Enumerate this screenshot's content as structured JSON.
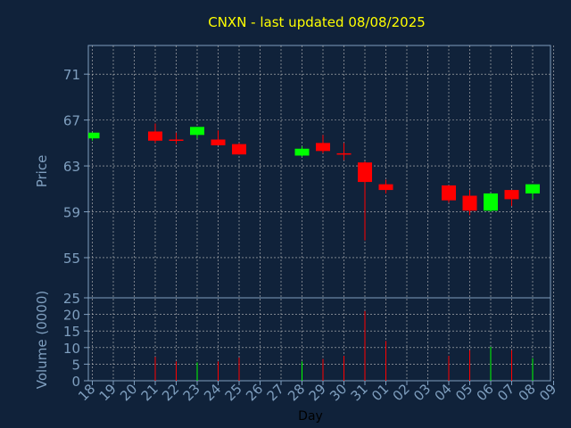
{
  "chart_data": {
    "type": "candlestick",
    "title": "CNXN - last updated 08/08/2025",
    "xlabel": "Day",
    "ylabel": "Price",
    "volume_ylabel": "Volume (0000)",
    "grid": true,
    "price_ylim": [
      51.5,
      73.5
    ],
    "price_ticks": [
      55,
      59,
      63,
      67,
      71
    ],
    "volume_ylim": [
      0,
      25
    ],
    "volume_ticks": [
      0,
      5,
      10,
      15,
      20,
      25
    ],
    "x_tick_labels": [
      "18",
      "19",
      "20",
      "21",
      "22",
      "23",
      "24",
      "25",
      "26",
      "27",
      "28",
      "29",
      "30",
      "31",
      "01",
      "02",
      "03",
      "04",
      "05",
      "06",
      "07",
      "08",
      "09"
    ],
    "candles": [
      {
        "day": "18",
        "open": 65.4,
        "high": 65.9,
        "low": 65.2,
        "close": 65.9,
        "volume": 0
      },
      {
        "day": "21",
        "open": 66.0,
        "high": 66.7,
        "low": 65.0,
        "close": 65.2,
        "volume": 7.2
      },
      {
        "day": "22",
        "open": 65.3,
        "high": 65.9,
        "low": 64.9,
        "close": 65.2,
        "volume": 5.8
      },
      {
        "day": "23",
        "open": 65.7,
        "high": 66.4,
        "low": 65.4,
        "close": 66.4,
        "volume": 5.5
      },
      {
        "day": "24",
        "open": 65.3,
        "high": 66.1,
        "low": 64.8,
        "close": 64.8,
        "volume": 5.8
      },
      {
        "day": "25",
        "open": 64.9,
        "high": 65.0,
        "low": 64.0,
        "close": 64.0,
        "volume": 7.0
      },
      {
        "day": "28",
        "open": 63.9,
        "high": 64.7,
        "low": 63.8,
        "close": 64.5,
        "volume": 5.8
      },
      {
        "day": "29",
        "open": 65.0,
        "high": 65.7,
        "low": 64.1,
        "close": 64.3,
        "volume": 6.6
      },
      {
        "day": "30",
        "open": 64.1,
        "high": 65.0,
        "low": 63.5,
        "close": 64.0,
        "volume": 7.5
      },
      {
        "day": "31",
        "open": 63.3,
        "high": 63.4,
        "low": 56.5,
        "close": 61.6,
        "volume": 21.0
      },
      {
        "day": "01",
        "open": 61.4,
        "high": 61.8,
        "low": 60.6,
        "close": 60.9,
        "volume": 12.0
      },
      {
        "day": "04",
        "open": 61.3,
        "high": 61.3,
        "low": 59.8,
        "close": 60.0,
        "volume": 7.5
      },
      {
        "day": "05",
        "open": 60.4,
        "high": 60.9,
        "low": 58.7,
        "close": 59.1,
        "volume": 9.2
      },
      {
        "day": "06",
        "open": 59.1,
        "high": 60.6,
        "low": 59.0,
        "close": 60.6,
        "volume": 10.2
      },
      {
        "day": "07",
        "open": 60.9,
        "high": 60.9,
        "low": 59.5,
        "close": 60.1,
        "volume": 9.2
      },
      {
        "day": "08",
        "open": 60.6,
        "high": 61.4,
        "low": 60.1,
        "close": 61.4,
        "volume": 6.8
      }
    ],
    "colors": {
      "up": "#00ff00",
      "down": "#ff0000",
      "background": "#10223a",
      "axis": "#7f9fbf",
      "grid": "#c0c0c0",
      "title": "#ffff00",
      "xlabel": "#000000"
    }
  }
}
